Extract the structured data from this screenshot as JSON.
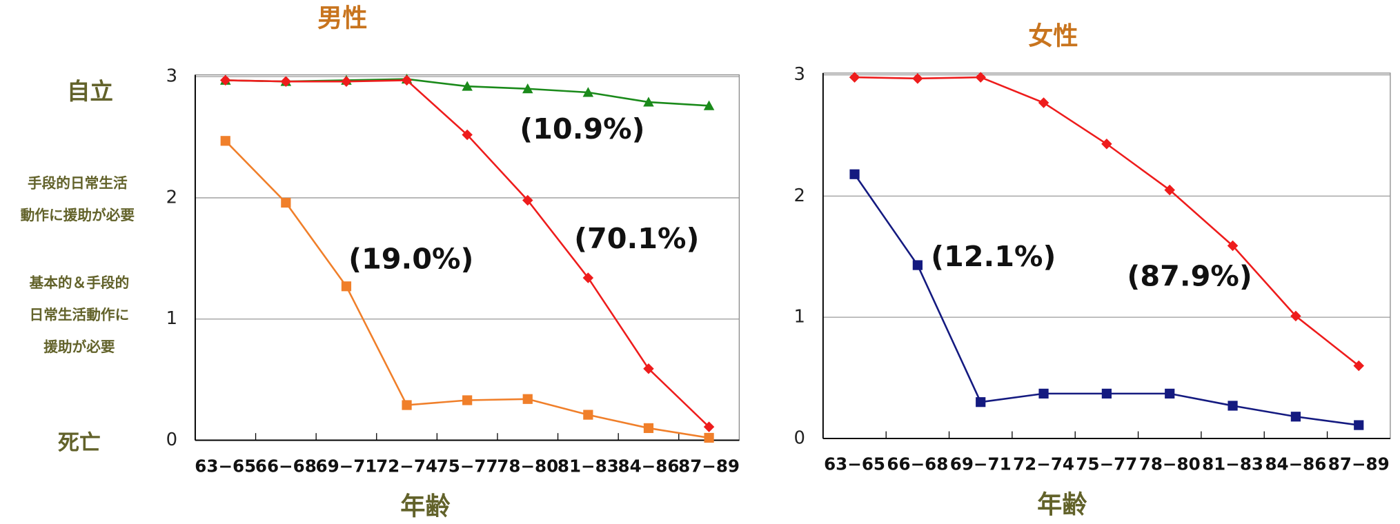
{
  "side_labels": [
    [
      "自立"
    ],
    [
      "手段的日常生活",
      "動作に援助が必要"
    ],
    [
      "基本的＆手段的",
      "日常生活動作に",
      "援助が必要"
    ],
    [
      "死亡"
    ]
  ],
  "chart_data": [
    {
      "type": "line",
      "title": "男性",
      "xlabel": "年齢",
      "categories": [
        "63−65",
        "66−68",
        "69−71",
        "72−74",
        "75−77",
        "78−80",
        "81−83",
        "84−86",
        "87−89"
      ],
      "series": [
        {
          "color": "#1a8a1a",
          "marker": "triangle",
          "values": [
            2.97,
            2.96,
            2.97,
            2.98,
            2.92,
            2.9,
            2.87,
            2.79,
            2.76
          ]
        },
        {
          "color": "#ee1c1c",
          "marker": "diamond",
          "values": [
            2.97,
            2.96,
            2.96,
            2.97,
            2.52,
            1.98,
            1.34,
            0.59,
            0.11
          ]
        },
        {
          "color": "#f07f2a",
          "marker": "square",
          "values": [
            2.47,
            1.96,
            1.27,
            0.29,
            0.33,
            0.34,
            0.21,
            0.1,
            0.02
          ]
        }
      ],
      "ylim": [
        0,
        3
      ],
      "yticks": [
        0,
        1,
        2,
        3
      ],
      "grid": true,
      "annotations": [
        "(10.9%)",
        "(19.0%)",
        "(70.1%)"
      ]
    },
    {
      "type": "line",
      "title": "女性",
      "xlabel": "年齢",
      "categories": [
        "63−65",
        "66−68",
        "69−71",
        "72−74",
        "75−77",
        "78−80",
        "81−83",
        "84−86",
        "87−89"
      ],
      "series": [
        {
          "color": "#ee1c1c",
          "marker": "diamond",
          "values": [
            2.98,
            2.97,
            2.98,
            2.77,
            2.43,
            2.05,
            1.59,
            1.01,
            0.6
          ]
        },
        {
          "color": "#141a80",
          "marker": "square",
          "values": [
            2.18,
            1.43,
            0.3,
            0.37,
            0.37,
            0.37,
            0.27,
            0.18,
            0.11
          ]
        }
      ],
      "ylim": [
        0,
        3
      ],
      "yticks": [
        0,
        1,
        2,
        3
      ],
      "grid": true,
      "annotations": [
        "(12.1%)",
        "(87.9%)"
      ]
    }
  ]
}
